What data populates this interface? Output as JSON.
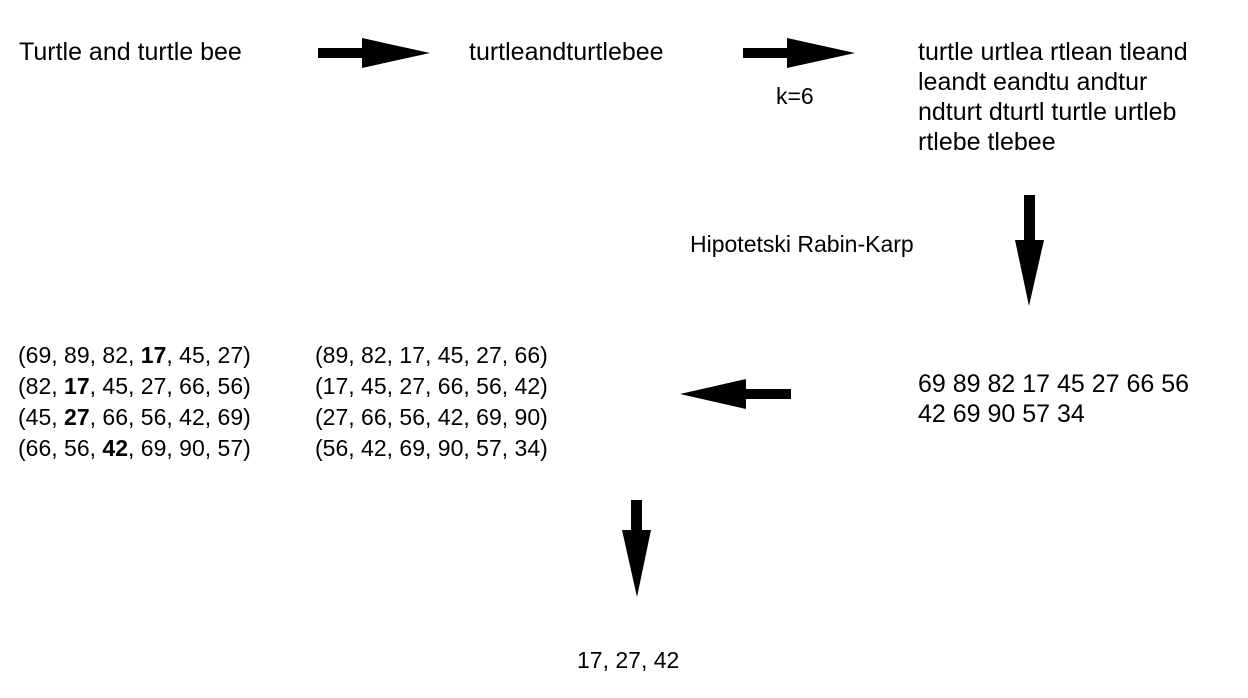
{
  "input_text": "Turtle and turtle bee",
  "normalized_text": "turtleandturtlebee",
  "k_label": "k=6",
  "kgram_lines": [
    "turtle urtlea rtlean tleand",
    "leandt eandtu andtur",
    "ndturt dturtl turtle urtleb",
    "rtlebe tlebee"
  ],
  "hash_label": "Hipotetski Rabin-Karp",
  "hash_lines": [
    "69 89 82 17 45 27 66 56",
    "42 69 90 57 34"
  ],
  "windows_left": [
    [
      "69",
      "89",
      "82",
      "17",
      "45",
      "27"
    ],
    [
      "82",
      "17",
      "45",
      "27",
      "66",
      "56"
    ],
    [
      "45",
      "27",
      "66",
      "56",
      "42",
      "69"
    ],
    [
      "66",
      "56",
      "42",
      "69",
      "90",
      "57"
    ]
  ],
  "windows_left_min_index": [
    3,
    1,
    1,
    2
  ],
  "windows_right": [
    [
      "89",
      "82",
      "17",
      "45",
      "27",
      "66"
    ],
    [
      "17",
      "45",
      "27",
      "66",
      "56",
      "42"
    ],
    [
      "27",
      "66",
      "56",
      "42",
      "69",
      "90"
    ],
    [
      "56",
      "42",
      "69",
      "90",
      "57",
      "34"
    ]
  ],
  "windows_right_min_index": [
    -1,
    -1,
    -1,
    -1
  ],
  "result": "17, 27, 42"
}
